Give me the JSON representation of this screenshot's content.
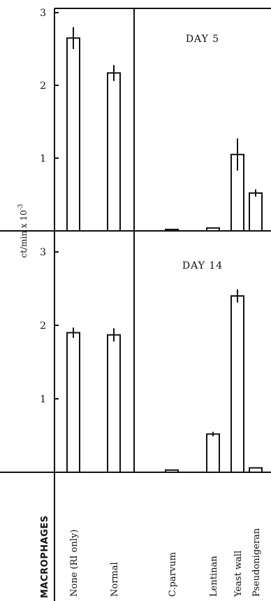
{
  "chart_data": {
    "type": "bar",
    "category_axis_title": "MACROPHAGES",
    "categories": [
      "None (RI only)",
      "Normal",
      "C.parvum",
      "Lentinan",
      "Yeast wall",
      "Pseudonigeran"
    ],
    "ylabel": "ct/min x 10",
    "ylabel_exponent": "-3",
    "ylim": [
      0,
      3
    ],
    "yticks": [
      "1",
      "2",
      "3"
    ],
    "panels": [
      {
        "title": "DAY 5",
        "values": [
          2.65,
          2.17,
          0.02,
          0.04,
          1.05,
          0.52
        ],
        "errors": [
          0.15,
          0.11,
          0.0,
          0.0,
          0.22,
          0.05
        ]
      },
      {
        "title": "DAY 14",
        "values": [
          1.9,
          1.87,
          0.03,
          0.52,
          2.4,
          0.06
        ],
        "errors": [
          0.07,
          0.09,
          0.0,
          0.03,
          0.09,
          0.0
        ]
      }
    ]
  }
}
